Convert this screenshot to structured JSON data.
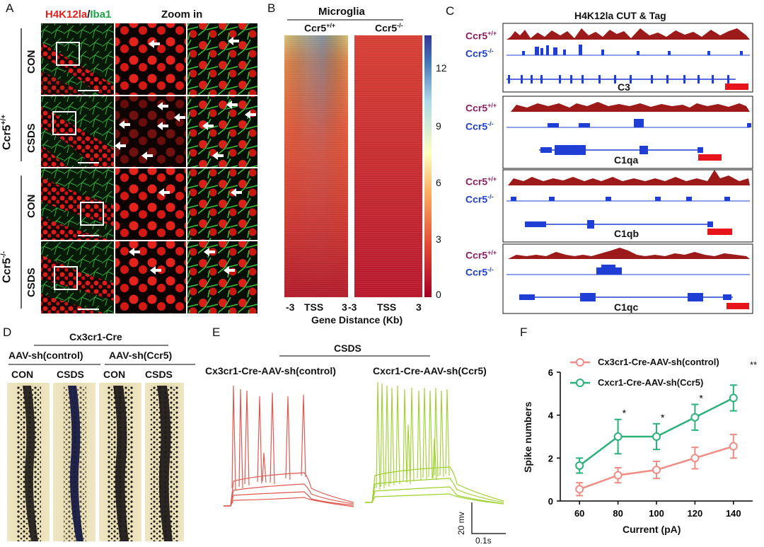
{
  "panel_labels": [
    "A",
    "B",
    "C",
    "D",
    "E",
    "F"
  ],
  "panelA": {
    "title_red": "H4K12la",
    "title_sep": "/",
    "title_green": "Iba1",
    "zoom_label": "Zoom in",
    "groups": [
      "Ccr5",
      "Ccr5"
    ],
    "group_sup": [
      "+/+",
      "-/-"
    ],
    "conditions": [
      "CON",
      "CSDS",
      "CON",
      "CSDS"
    ]
  },
  "panelB": {
    "title": "Microglia",
    "col1": "Ccr5",
    "col1_sup": "+/+",
    "col2": "Ccr5",
    "col2_sup": "-/-",
    "colorbar_ticks": [
      "12",
      "9",
      "6",
      "3",
      "0"
    ],
    "x_ticks": [
      "-3",
      "TSS",
      "3",
      "-3",
      "TSS",
      "3"
    ],
    "xlabel": "Gene Distance (Kb)"
  },
  "panelC": {
    "title": "H4K12la CUT & Tag",
    "track_wt": "Ccr5",
    "track_wt_sup": "+/+",
    "track_ko": "Ccr5",
    "track_ko_sup": "-/-",
    "genes": [
      "C3",
      "C1qa",
      "C1qb",
      "C1qc"
    ]
  },
  "panelD": {
    "title": "Cx3cr1-Cre",
    "groups": [
      "AAV-sh(control)",
      "AAV-sh(Ccr5)"
    ],
    "conditions": [
      "CON",
      "CSDS",
      "CON",
      "CSDS"
    ]
  },
  "panelE": {
    "title": "CSDS",
    "traces": [
      "Cx3cr1-Cre-AAV-sh(control)",
      "Cxcr1-Cre-AAV-sh(Ccr5)"
    ],
    "scale_v": "20 mv",
    "scale_t": "0.1s",
    "colors": {
      "control": "#e05a52",
      "ccr5": "#9ed12c"
    }
  },
  "colors": {
    "control": "#f08c84",
    "ccr5": "#2ab27b",
    "wt_track": "#9c1a1a",
    "ko_track": "#1f3fd4"
  },
  "chart_data": {
    "type": "line",
    "x": [
      60,
      80,
      100,
      120,
      140
    ],
    "xlabel": "Current (pA)",
    "ylabel": "Spike numbers",
    "xlim": [
      50,
      150
    ],
    "ylim": [
      0,
      6
    ],
    "xticks": [
      60,
      80,
      100,
      120,
      140
    ],
    "yticks": [
      0,
      2,
      4,
      6
    ],
    "legend_position": "top-left",
    "significance": {
      "overall": "**",
      "points": [
        {
          "x": 80,
          "label": "*"
        },
        {
          "x": 100,
          "label": "*"
        },
        {
          "x": 120,
          "label": "*"
        }
      ]
    },
    "series": [
      {
        "name": "Cx3cr1-Cre-AAV-sh(control)",
        "color": "#f08c84",
        "values": [
          0.55,
          1.2,
          1.45,
          2.0,
          2.55
        ],
        "errors": [
          0.3,
          0.35,
          0.4,
          0.5,
          0.55
        ]
      },
      {
        "name": "Cxcr1-Cre-AAV-sh(Ccr5)",
        "color": "#2ab27b",
        "values": [
          1.65,
          3.0,
          3.0,
          3.9,
          4.8
        ],
        "errors": [
          0.35,
          0.8,
          0.6,
          0.6,
          0.6
        ]
      }
    ]
  }
}
